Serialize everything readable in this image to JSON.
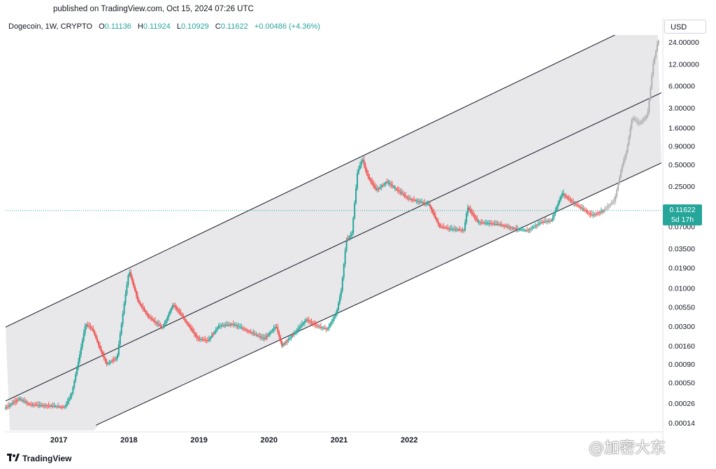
{
  "header": {
    "published": "published on TradingView.com, Oct 15, 2024 07:26 UTC",
    "symbol": "Dogecoin, 1W, CRYPTO",
    "o_label": "O",
    "o_value": "0.11136",
    "h_label": "H",
    "h_value": "0.11924",
    "l_label": "L",
    "l_value": "0.10929",
    "c_label": "C",
    "c_value": "0.11622",
    "change": "+0.00486 (+4.36%)",
    "currency": "USD"
  },
  "price_tag": {
    "price": "0.11622",
    "countdown": "5d 17h"
  },
  "footer": {
    "brand": "TradingView",
    "watermark": "@加密大东"
  },
  "colors": {
    "up": "#26a69a",
    "down": "#ef5350",
    "channel_fill": "#e8e8eb",
    "line": "#131722",
    "projection": "#b0b0b0"
  },
  "chart_data": {
    "type": "candlestick",
    "y_scale": "log",
    "x_ticks": [
      {
        "label": "2017",
        "t": 2017.0
      },
      {
        "label": "2018",
        "t": 2018.0
      },
      {
        "label": "2019",
        "t": 2019.0
      },
      {
        "label": "2020",
        "t": 2020.0
      },
      {
        "label": "2021",
        "t": 2021.0
      },
      {
        "label": "2022",
        "t": 2022.0
      }
    ],
    "y_ticks": [
      {
        "label": "24.00000",
        "v": 24
      },
      {
        "label": "12.00000",
        "v": 12
      },
      {
        "label": "6.00000",
        "v": 6
      },
      {
        "label": "3.00000",
        "v": 3
      },
      {
        "label": "1.60000",
        "v": 1.6
      },
      {
        "label": "0.90000",
        "v": 0.9
      },
      {
        "label": "0.50000",
        "v": 0.5
      },
      {
        "label": "0.25000",
        "v": 0.25
      },
      {
        "label": "0.07000",
        "v": 0.07
      },
      {
        "label": "0.03500",
        "v": 0.035
      },
      {
        "label": "0.01900",
        "v": 0.019
      },
      {
        "label": "0.01000",
        "v": 0.01
      },
      {
        "label": "0.00550",
        "v": 0.0055
      },
      {
        "label": "0.00300",
        "v": 0.003
      },
      {
        "label": "0.00160",
        "v": 0.0016
      },
      {
        "label": "0.00090",
        "v": 0.0009
      },
      {
        "label": "0.00050",
        "v": 0.0005
      },
      {
        "label": "0.00026",
        "v": 0.00026
      },
      {
        "label": "0.00014",
        "v": 0.00014
      }
    ],
    "current_price": 0.11622,
    "channel": {
      "upper": [
        {
          "t": 2016.24,
          "v": 0.0029
        },
        {
          "t": 2024.8,
          "v": 26
        }
      ],
      "middle": [
        {
          "t": 2016.24,
          "v": 0.00028
        },
        {
          "t": 2024.8,
          "v": 2.1
        }
      ],
      "lower": [
        {
          "t": 2017.53,
          "v": 0.00013
        },
        {
          "t": 2024.8,
          "v": 0.23
        }
      ]
    },
    "price_path": [
      {
        "t": 2016.24,
        "v": 0.00022
      },
      {
        "t": 2016.45,
        "v": 0.0003
      },
      {
        "t": 2016.6,
        "v": 0.00025
      },
      {
        "t": 2016.9,
        "v": 0.00024
      },
      {
        "t": 2017.1,
        "v": 0.00023
      },
      {
        "t": 2017.2,
        "v": 0.00035
      },
      {
        "t": 2017.3,
        "v": 0.001
      },
      {
        "t": 2017.4,
        "v": 0.0032
      },
      {
        "t": 2017.5,
        "v": 0.0027
      },
      {
        "t": 2017.6,
        "v": 0.0015
      },
      {
        "t": 2017.7,
        "v": 0.0009
      },
      {
        "t": 2017.85,
        "v": 0.0011
      },
      {
        "t": 2017.95,
        "v": 0.006
      },
      {
        "t": 2018.02,
        "v": 0.0175
      },
      {
        "t": 2018.15,
        "v": 0.0065
      },
      {
        "t": 2018.3,
        "v": 0.004
      },
      {
        "t": 2018.5,
        "v": 0.0028
      },
      {
        "t": 2018.65,
        "v": 0.006
      },
      {
        "t": 2018.8,
        "v": 0.0038
      },
      {
        "t": 2019.0,
        "v": 0.002
      },
      {
        "t": 2019.15,
        "v": 0.0019
      },
      {
        "t": 2019.3,
        "v": 0.003
      },
      {
        "t": 2019.5,
        "v": 0.0032
      },
      {
        "t": 2019.7,
        "v": 0.0026
      },
      {
        "t": 2019.95,
        "v": 0.002
      },
      {
        "t": 2020.12,
        "v": 0.003
      },
      {
        "t": 2020.2,
        "v": 0.0016
      },
      {
        "t": 2020.4,
        "v": 0.0025
      },
      {
        "t": 2020.55,
        "v": 0.0037
      },
      {
        "t": 2020.7,
        "v": 0.003
      },
      {
        "t": 2020.85,
        "v": 0.0027
      },
      {
        "t": 2020.98,
        "v": 0.0045
      },
      {
        "t": 2021.05,
        "v": 0.0095
      },
      {
        "t": 2021.12,
        "v": 0.045
      },
      {
        "t": 2021.2,
        "v": 0.055
      },
      {
        "t": 2021.28,
        "v": 0.39
      },
      {
        "t": 2021.35,
        "v": 0.6
      },
      {
        "t": 2021.42,
        "v": 0.35
      },
      {
        "t": 2021.55,
        "v": 0.22
      },
      {
        "t": 2021.7,
        "v": 0.29
      },
      {
        "t": 2021.85,
        "v": 0.22
      },
      {
        "t": 2022.0,
        "v": 0.17
      },
      {
        "t": 2022.3,
        "v": 0.14
      },
      {
        "t": 2022.45,
        "v": 0.07
      },
      {
        "t": 2022.6,
        "v": 0.065
      },
      {
        "t": 2022.8,
        "v": 0.062
      },
      {
        "t": 2022.85,
        "v": 0.13
      },
      {
        "t": 2023.0,
        "v": 0.08
      },
      {
        "t": 2023.3,
        "v": 0.075
      },
      {
        "t": 2023.5,
        "v": 0.066
      },
      {
        "t": 2023.7,
        "v": 0.061
      },
      {
        "t": 2023.9,
        "v": 0.08
      },
      {
        "t": 2024.05,
        "v": 0.085
      },
      {
        "t": 2024.2,
        "v": 0.2
      },
      {
        "t": 2024.35,
        "v": 0.15
      },
      {
        "t": 2024.5,
        "v": 0.12
      },
      {
        "t": 2024.62,
        "v": 0.1
      },
      {
        "t": 2024.7,
        "v": 0.105
      },
      {
        "t": 2024.79,
        "v": 0.11622
      }
    ],
    "projection_path": [
      {
        "t": 2024.79,
        "v": 0.11622
      },
      {
        "t": 2024.95,
        "v": 0.16
      },
      {
        "t": 2025.05,
        "v": 0.45
      },
      {
        "t": 2025.12,
        "v": 0.75
      },
      {
        "t": 2025.2,
        "v": 2.2
      },
      {
        "t": 2025.3,
        "v": 1.8
      },
      {
        "t": 2025.42,
        "v": 2.4
      },
      {
        "t": 2025.5,
        "v": 12
      },
      {
        "t": 2025.57,
        "v": 25
      }
    ]
  }
}
